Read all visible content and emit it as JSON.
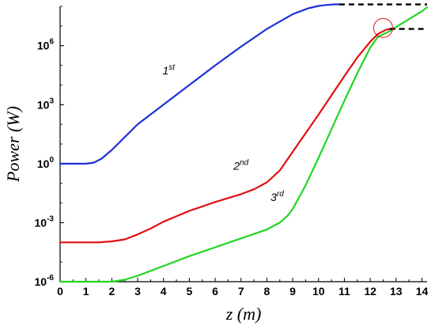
{
  "chart_data": {
    "type": "line",
    "title": "",
    "xlabel": "z (m)",
    "ylabel": "Power (W)",
    "y_scale": "log",
    "xlim": [
      0,
      14.2
    ],
    "ylim": [
      1e-06,
      100000000.0
    ],
    "grid": false,
    "x_ticks": [
      "0",
      "1",
      "2",
      "3",
      "4",
      "5",
      "6",
      "7",
      "8",
      "9",
      "10",
      "11",
      "12",
      "13",
      "14"
    ],
    "y_ticks": [
      {
        "value": 1e-06,
        "base": "10",
        "exp": "-6"
      },
      {
        "value": 0.001,
        "base": "10",
        "exp": "-3"
      },
      {
        "value": 1,
        "base": "10",
        "exp": "0"
      },
      {
        "value": 1000.0,
        "base": "10",
        "exp": "3"
      },
      {
        "value": 1000000.0,
        "base": "10",
        "exp": "6"
      }
    ],
    "series": [
      {
        "name": "1st",
        "label_main": "1",
        "label_sup": "st",
        "color": "#1f2fd6",
        "x": [
          0,
          1.0,
          1.3,
          1.6,
          2.0,
          2.5,
          3.0,
          4.0,
          5.0,
          6.0,
          7.0,
          8.0,
          9.0,
          9.6,
          10.0,
          10.3,
          10.6,
          10.8
        ],
        "log10_y": [
          0,
          0,
          0.05,
          0.25,
          0.7,
          1.35,
          2.0,
          3.0,
          4.0,
          5.0,
          5.95,
          6.85,
          7.6,
          7.9,
          8.02,
          8.07,
          8.1,
          8.1
        ]
      },
      {
        "name": "2nd",
        "label_main": "2",
        "label_sup": "nd",
        "color": "#e01010",
        "x": [
          0,
          1.5,
          2.0,
          2.5,
          3.0,
          3.5,
          4.0,
          5.0,
          6.0,
          7.0,
          7.5,
          8.0,
          8.5,
          9.0,
          10.0,
          11.0,
          11.5,
          12.0,
          12.3,
          12.6,
          12.75
        ],
        "log10_y": [
          -4,
          -4,
          -3.95,
          -3.85,
          -3.6,
          -3.3,
          -2.95,
          -2.4,
          -1.95,
          -1.55,
          -1.3,
          -0.95,
          -0.35,
          0.6,
          2.5,
          4.45,
          5.4,
          6.2,
          6.6,
          6.8,
          6.85
        ]
      },
      {
        "name": "3rd",
        "label_main": "3",
        "label_sup": "rd",
        "color": "#22d622",
        "x": [
          0,
          2.0,
          2.5,
          3.0,
          3.5,
          4.0,
          5.0,
          6.0,
          7.0,
          8.0,
          8.5,
          8.8,
          9.0,
          9.5,
          10.0,
          11.0,
          11.5,
          12.0,
          12.3,
          12.7,
          13.0,
          13.5,
          14.0,
          14.2
        ],
        "log10_y": [
          -6,
          -6,
          -5.9,
          -5.7,
          -5.45,
          -5.2,
          -4.7,
          -4.25,
          -3.8,
          -3.35,
          -3.0,
          -2.65,
          -2.3,
          -1.1,
          0.3,
          3.2,
          4.6,
          5.9,
          6.45,
          6.7,
          6.95,
          7.35,
          7.75,
          7.95
        ]
      }
    ],
    "saturation_lines": [
      {
        "x": [
          10.8,
          14.2
        ],
        "log10_y": [
          8.1,
          8.1
        ],
        "color": "#000000",
        "style": "dashed"
      },
      {
        "x": [
          12.75,
          14.2
        ],
        "log10_y": [
          6.85,
          6.85
        ],
        "color": "#000000",
        "style": "dashed"
      }
    ],
    "highlight_circle": {
      "x": 12.5,
      "log10_y": 6.9,
      "color": "#e01010"
    },
    "series_label_positions": [
      {
        "series": "1st",
        "x": 4.2,
        "log10_y": 4.55
      },
      {
        "series": "2nd",
        "x": 7.0,
        "log10_y": -0.3
      },
      {
        "series": "3rd",
        "x": 8.4,
        "log10_y": -1.9
      }
    ]
  }
}
